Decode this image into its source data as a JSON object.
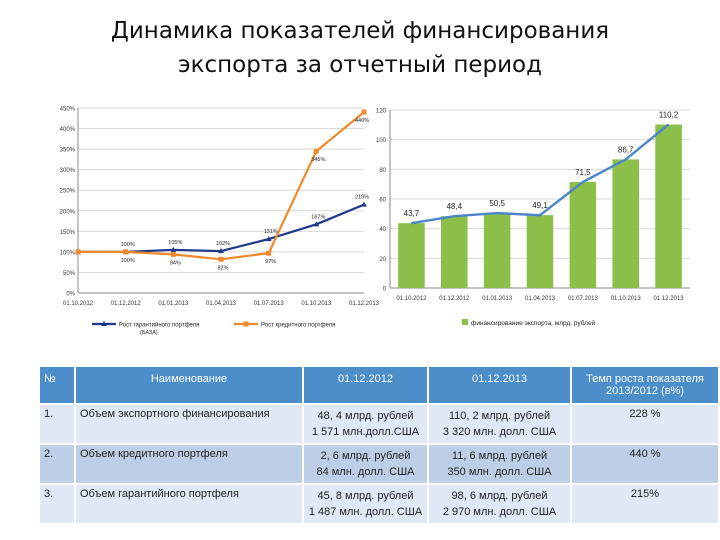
{
  "title": {
    "line1": "Динамика показателей финансирования",
    "line2": "экспорта за отчетный период"
  },
  "chart_data": [
    {
      "type": "line",
      "title": "",
      "categories": [
        "01.10.2012",
        "01.12.2012",
        "01.01.2013",
        "01.04.2013",
        "01.07.2013",
        "01.10.2013",
        "01.12.2013"
      ],
      "y_ticks": [
        "0%",
        "50%",
        "100%",
        "150%",
        "200%",
        "250%",
        "300%",
        "350%",
        "400%",
        "450%"
      ],
      "ylim": [
        0,
        450
      ],
      "note": "(БАЗА)",
      "series": [
        {
          "name": "Рост гарантийного портфеля",
          "color": "#1f3a8a",
          "values": [
            100,
            100,
            105,
            102,
            131,
            167,
            215
          ],
          "labels": [
            "",
            "100%",
            "105%",
            "102%",
            "131%",
            "167%",
            "215%"
          ]
        },
        {
          "name": "Рост кредитного портфеля",
          "color": "#f0892b",
          "values": [
            100,
            100,
            94,
            82,
            97,
            345,
            440
          ],
          "labels": [
            "",
            "100%",
            "94%",
            "82%",
            "97%",
            "345%",
            "440%"
          ]
        }
      ],
      "grid": true,
      "legend": "bottom"
    },
    {
      "type": "bar",
      "title": "",
      "categories": [
        "01.10.2012",
        "01.12.2012",
        "01.01.2013",
        "01.04.2013",
        "01.07.2013",
        "01.10.2013",
        "01.12.2013"
      ],
      "values": [
        43.7,
        48.4,
        50.5,
        49.1,
        71.5,
        86.7,
        110.2
      ],
      "labels": [
        "43,7",
        "48,4",
        "50,5",
        "49,1",
        "71,5",
        "86,7",
        "110,2"
      ],
      "y_ticks": [
        "0",
        "20",
        "40",
        "60",
        "80",
        "100",
        "120"
      ],
      "ylim": [
        0,
        120
      ],
      "series_name": "финансирование экспорта, млрд. рублей",
      "bar_color": "#8cbf4a",
      "line_color": "#4a86c8",
      "grid": true,
      "legend": "bottom"
    }
  ],
  "table": {
    "headers": [
      "№",
      "Наименование",
      "01.12.2012",
      "01.12.2013",
      "Темп роста показателя 2013/2012 (в%)"
    ],
    "rows": [
      {
        "num": "1.",
        "name": "Объем экспортного финансирования",
        "v2012": [
          "48, 4 млрд. рублей",
          "1 571 млн.долл.США"
        ],
        "v2013": [
          "110, 2 млрд. рублей",
          "3 320 млн. долл. США"
        ],
        "pct": "228 %"
      },
      {
        "num": "2.",
        "name": "Объем кредитного портфеля",
        "v2012": [
          "2, 6 млрд. рублей",
          "84 млн. долл. США"
        ],
        "v2013": [
          "11, 6 млрд. рублей",
          "350 млн. долл. США"
        ],
        "pct": "440 %"
      },
      {
        "num": "3.",
        "name": "Объем гарантийного портфеля",
        "v2012": [
          "45, 8 млрд. рублей",
          "1 487 млн. долл. США"
        ],
        "v2013": [
          "98, 6 млрд. рублей",
          "2 970 млн. долл. США"
        ],
        "pct": "215%"
      }
    ]
  }
}
